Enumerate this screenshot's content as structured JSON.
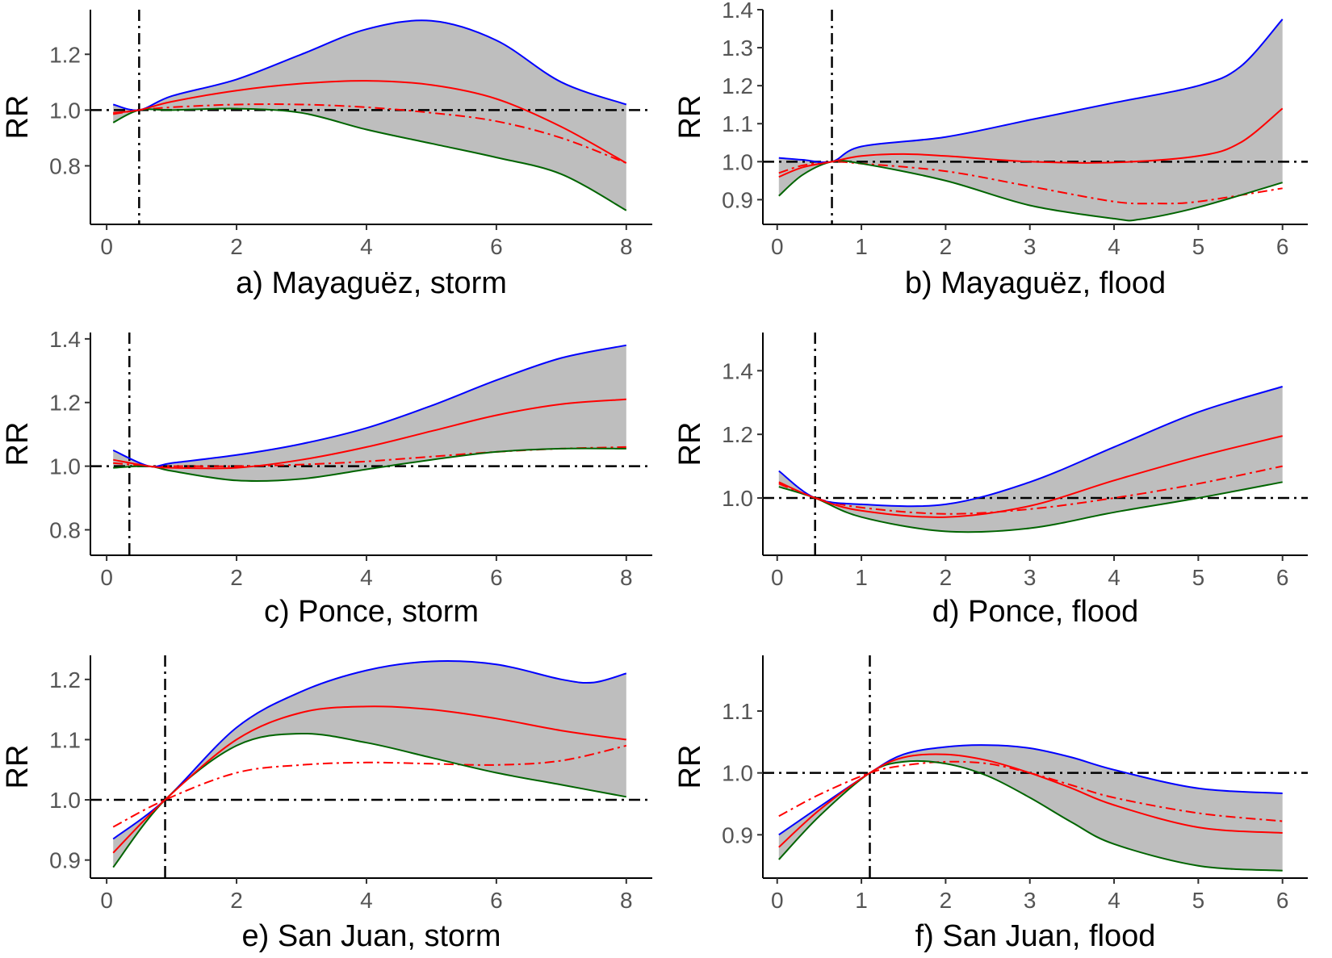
{
  "figure": {
    "background": "#ffffff"
  },
  "colors": {
    "band": "#bebebe",
    "upper": "#0000ff",
    "lower": "#006400",
    "estimate": "#ff0000",
    "reference": "#000000"
  },
  "chart_data": [
    {
      "id": "a",
      "type": "line",
      "title": "a) Mayaguëz, storm",
      "xlabel": "a) Mayaguëz, storm",
      "ylabel": "RR",
      "xlim": [
        -0.25,
        8.4
      ],
      "ylim": [
        0.59,
        1.36
      ],
      "xticks": [
        0,
        2,
        4,
        6,
        8
      ],
      "xtick_labels": [
        "0",
        "2",
        "4",
        "6",
        "8"
      ],
      "yticks": [
        0.8,
        1.0,
        1.2
      ],
      "ytick_labels": [
        "0.8",
        "1.0",
        "1.2"
      ],
      "vline": 0.5,
      "hline": 1.0,
      "series": [
        {
          "name": "upper",
          "x": [
            0.1,
            0.5,
            1,
            2,
            3,
            4,
            5,
            6,
            7,
            8
          ],
          "values": [
            1.02,
            1.0,
            1.05,
            1.11,
            1.2,
            1.29,
            1.32,
            1.25,
            1.1,
            1.02
          ]
        },
        {
          "name": "lower",
          "x": [
            0.1,
            0.5,
            1,
            2,
            3,
            4,
            5,
            6,
            7,
            8
          ],
          "values": [
            0.955,
            1.0,
            1.0,
            1.005,
            0.99,
            0.93,
            0.88,
            0.83,
            0.77,
            0.64
          ]
        },
        {
          "name": "estimate",
          "x": [
            0.1,
            0.5,
            1,
            2,
            3,
            4,
            5,
            6,
            7,
            8
          ],
          "values": [
            0.99,
            1.0,
            1.03,
            1.07,
            1.095,
            1.105,
            1.09,
            1.04,
            0.94,
            0.81
          ]
        },
        {
          "name": "estimate_alt",
          "x": [
            0.1,
            0.5,
            1,
            2,
            3,
            4,
            5,
            6,
            7,
            8
          ],
          "values": [
            0.985,
            1.0,
            1.01,
            1.02,
            1.02,
            1.01,
            0.99,
            0.96,
            0.9,
            0.81
          ]
        }
      ]
    },
    {
      "id": "b",
      "type": "line",
      "title": "b) Mayaguëz, flood",
      "xlabel": "b) Mayaguëz, flood",
      "ylabel": "RR",
      "xlim": [
        -0.17,
        6.3
      ],
      "ylim": [
        0.835,
        1.4
      ],
      "xticks": [
        0,
        1,
        2,
        3,
        4,
        5,
        6
      ],
      "xtick_labels": [
        "0",
        "1",
        "2",
        "3",
        "4",
        "5",
        "6"
      ],
      "yticks": [
        0.9,
        1.0,
        1.1,
        1.2,
        1.3,
        1.4
      ],
      "ytick_labels": [
        "0.9",
        "1.0",
        "1.1",
        "1.2",
        "1.3",
        "1.4"
      ],
      "vline": 0.65,
      "hline": 1.0,
      "series": [
        {
          "name": "upper",
          "x": [
            0.02,
            0.3,
            0.65,
            1,
            2,
            3,
            4,
            5,
            5.5,
            6
          ],
          "values": [
            1.01,
            1.005,
            1.0,
            1.04,
            1.065,
            1.11,
            1.155,
            1.2,
            1.25,
            1.375
          ]
        },
        {
          "name": "lower",
          "x": [
            0.02,
            0.3,
            0.65,
            1,
            2,
            3,
            4,
            4.3,
            5,
            6
          ],
          "values": [
            0.91,
            0.965,
            1.0,
            0.995,
            0.95,
            0.885,
            0.85,
            0.848,
            0.88,
            0.945
          ]
        },
        {
          "name": "estimate",
          "x": [
            0.02,
            0.3,
            0.65,
            1,
            1.5,
            2,
            3,
            4,
            5,
            5.5,
            6
          ],
          "values": [
            0.96,
            0.985,
            1.0,
            1.015,
            1.02,
            1.015,
            1.0,
            0.998,
            1.015,
            1.05,
            1.14
          ]
        },
        {
          "name": "estimate_alt",
          "x": [
            0.02,
            0.3,
            0.65,
            1,
            2,
            3,
            4,
            4.5,
            5,
            6
          ],
          "values": [
            0.97,
            0.99,
            1.0,
            0.995,
            0.975,
            0.935,
            0.895,
            0.89,
            0.895,
            0.93
          ]
        }
      ]
    },
    {
      "id": "c",
      "type": "line",
      "title": "c) Ponce, storm",
      "xlabel": "c) Ponce, storm",
      "ylabel": "RR",
      "xlim": [
        -0.25,
        8.4
      ],
      "ylim": [
        0.72,
        1.42
      ],
      "xticks": [
        0,
        2,
        4,
        6,
        8
      ],
      "xtick_labels": [
        "0",
        "2",
        "4",
        "6",
        "8"
      ],
      "yticks": [
        0.8,
        1.0,
        1.2,
        1.4
      ],
      "ytick_labels": [
        "0.8",
        "1.0",
        "1.2",
        "1.4"
      ],
      "vline": 0.35,
      "hline": 1.0,
      "series": [
        {
          "name": "upper",
          "x": [
            0.1,
            0.65,
            1,
            2,
            3,
            4,
            5,
            6,
            7,
            8
          ],
          "values": [
            1.05,
            1.0,
            1.01,
            1.035,
            1.07,
            1.12,
            1.19,
            1.27,
            1.34,
            1.38
          ]
        },
        {
          "name": "lower",
          "x": [
            0.1,
            0.65,
            1,
            2,
            3,
            4,
            5,
            6,
            7,
            8
          ],
          "values": [
            0.995,
            1.0,
            0.985,
            0.955,
            0.96,
            0.99,
            1.02,
            1.045,
            1.055,
            1.055
          ]
        },
        {
          "name": "estimate",
          "x": [
            0.1,
            0.65,
            1,
            2,
            3,
            4,
            5,
            6,
            7,
            8
          ],
          "values": [
            1.02,
            1.0,
            0.995,
            0.995,
            1.02,
            1.06,
            1.11,
            1.16,
            1.195,
            1.21
          ]
        },
        {
          "name": "estimate_alt",
          "x": [
            0.1,
            0.65,
            1,
            2,
            3,
            4,
            5,
            6,
            7,
            8
          ],
          "values": [
            1.01,
            1.0,
            1.0,
            1.0,
            1.005,
            1.015,
            1.03,
            1.045,
            1.055,
            1.06
          ]
        }
      ]
    },
    {
      "id": "d",
      "type": "line",
      "title": "d) Ponce, flood",
      "xlabel": "d) Ponce, flood",
      "ylabel": "RR",
      "xlim": [
        -0.17,
        6.3
      ],
      "ylim": [
        0.82,
        1.52
      ],
      "xticks": [
        0,
        1,
        2,
        3,
        4,
        5,
        6
      ],
      "xtick_labels": [
        "0",
        "1",
        "2",
        "3",
        "4",
        "5",
        "6"
      ],
      "yticks": [
        1.0,
        1.2,
        1.4
      ],
      "ytick_labels": [
        "1.0",
        "1.2",
        "1.4"
      ],
      "vline": 0.45,
      "hline": 1.0,
      "series": [
        {
          "name": "upper",
          "x": [
            0.02,
            0.45,
            1,
            2,
            3,
            4,
            5,
            6
          ],
          "values": [
            1.085,
            1.0,
            0.98,
            0.98,
            1.05,
            1.16,
            1.27,
            1.35
          ]
        },
        {
          "name": "lower",
          "x": [
            0.02,
            0.45,
            1,
            2,
            3,
            4,
            5,
            6
          ],
          "values": [
            1.035,
            1.0,
            0.94,
            0.895,
            0.905,
            0.955,
            1.0,
            1.05
          ]
        },
        {
          "name": "estimate",
          "x": [
            0.02,
            0.45,
            1,
            2,
            3,
            4,
            5,
            6
          ],
          "values": [
            1.05,
            1.0,
            0.96,
            0.94,
            0.975,
            1.055,
            1.13,
            1.195
          ]
        },
        {
          "name": "estimate_alt",
          "x": [
            0.02,
            0.45,
            1,
            2,
            3,
            4,
            5,
            6
          ],
          "values": [
            1.045,
            1.0,
            0.97,
            0.95,
            0.965,
            1.0,
            1.045,
            1.1
          ]
        }
      ]
    },
    {
      "id": "e",
      "type": "line",
      "title": "e) San Juan, storm",
      "xlabel": "e) San Juan, storm",
      "ylabel": "RR",
      "xlim": [
        -0.25,
        8.4
      ],
      "ylim": [
        0.87,
        1.24
      ],
      "xticks": [
        0,
        2,
        4,
        6,
        8
      ],
      "xtick_labels": [
        "0",
        "2",
        "4",
        "6",
        "8"
      ],
      "yticks": [
        0.9,
        1.0,
        1.1,
        1.2
      ],
      "ytick_labels": [
        "0.9",
        "1.0",
        "1.1",
        "1.2"
      ],
      "vline": 0.9,
      "hline": 1.0,
      "series": [
        {
          "name": "upper",
          "x": [
            0.1,
            0.9,
            2,
            3,
            4,
            5,
            6,
            7,
            7.5,
            8
          ],
          "values": [
            0.935,
            1.0,
            1.12,
            1.18,
            1.215,
            1.23,
            1.225,
            1.2,
            1.195,
            1.21
          ]
        },
        {
          "name": "lower",
          "x": [
            0.1,
            0.9,
            2,
            3,
            4,
            5,
            6,
            7,
            8
          ],
          "values": [
            0.888,
            1.0,
            1.09,
            1.11,
            1.095,
            1.07,
            1.045,
            1.025,
            1.005
          ]
        },
        {
          "name": "estimate",
          "x": [
            0.1,
            0.9,
            2,
            3,
            4,
            5,
            6,
            7,
            8
          ],
          "values": [
            0.912,
            1.0,
            1.1,
            1.145,
            1.155,
            1.15,
            1.135,
            1.115,
            1.1
          ]
        },
        {
          "name": "estimate_alt",
          "x": [
            0.1,
            0.9,
            2,
            3,
            4,
            5,
            6,
            7,
            8
          ],
          "values": [
            0.955,
            1.0,
            1.045,
            1.058,
            1.062,
            1.06,
            1.058,
            1.065,
            1.09
          ]
        }
      ]
    },
    {
      "id": "f",
      "type": "line",
      "title": "f) San Juan, flood",
      "xlabel": "f) San Juan, flood",
      "ylabel": "RR",
      "xlim": [
        -0.17,
        6.3
      ],
      "ylim": [
        0.83,
        1.19
      ],
      "xticks": [
        0,
        1,
        2,
        3,
        4,
        5,
        6
      ],
      "xtick_labels": [
        "0",
        "1",
        "2",
        "3",
        "4",
        "5",
        "6"
      ],
      "yticks": [
        0.9,
        1.0,
        1.1
      ],
      "ytick_labels": [
        "0.9",
        "1.0",
        "1.1"
      ],
      "vline": 1.1,
      "hline": 1.0,
      "series": [
        {
          "name": "upper",
          "x": [
            0.02,
            0.5,
            1.1,
            1.5,
            2,
            2.5,
            3,
            3.5,
            4,
            5,
            6
          ],
          "values": [
            0.9,
            0.945,
            1.0,
            1.03,
            1.042,
            1.045,
            1.04,
            1.025,
            1.005,
            0.975,
            0.967
          ]
        },
        {
          "name": "lower",
          "x": [
            0.02,
            0.5,
            1.1,
            1.5,
            2,
            2.5,
            3,
            3.5,
            4,
            5,
            6
          ],
          "values": [
            0.86,
            0.93,
            1.0,
            1.018,
            1.015,
            0.995,
            0.96,
            0.92,
            0.885,
            0.85,
            0.842
          ]
        },
        {
          "name": "estimate",
          "x": [
            0.02,
            0.5,
            1.1,
            1.5,
            2,
            2.5,
            3,
            3.5,
            4,
            5,
            6
          ],
          "values": [
            0.88,
            0.94,
            1.0,
            1.025,
            1.03,
            1.02,
            1.0,
            0.975,
            0.948,
            0.912,
            0.903
          ]
        },
        {
          "name": "estimate_alt",
          "x": [
            0.02,
            0.5,
            1.1,
            1.5,
            2,
            2.5,
            3,
            3.5,
            4,
            5,
            6
          ],
          "values": [
            0.93,
            0.965,
            1.0,
            1.012,
            1.018,
            1.015,
            1.0,
            0.98,
            0.96,
            0.935,
            0.922
          ]
        }
      ]
    }
  ]
}
